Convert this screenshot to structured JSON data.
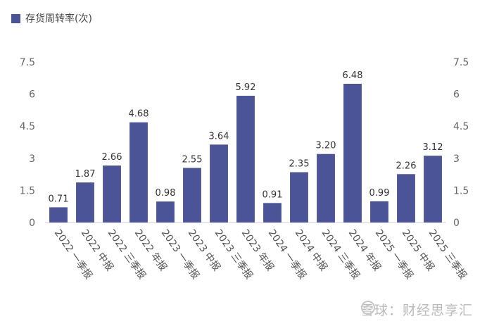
{
  "chart_data": {
    "type": "bar",
    "categories": [
      "2022一季报",
      "2022中报",
      "2022三季报",
      "2022年报",
      "2023一季报",
      "2023中报",
      "2023三季报",
      "2023年报",
      "2024一季报",
      "2024中报",
      "2024三季报",
      "2024年报",
      "2025一季报",
      "2025中报",
      "2025三季报"
    ],
    "x_tick_labels": [
      "2022 一季报",
      "2022 中报",
      "2022 三季报",
      "2022 年报",
      "2023 一季报",
      "2023 中报",
      "2023 三季报",
      "2023 年报",
      "2024 一季报",
      "2024 中报",
      "2024 三季报",
      "2024 年报",
      "2025 一季报",
      "2025 中报",
      "2025 三季报"
    ],
    "series": [
      {
        "name": "存货周转率(次)",
        "values": [
          0.71,
          1.87,
          2.66,
          4.68,
          0.98,
          2.55,
          3.64,
          5.92,
          0.91,
          2.35,
          3.2,
          6.48,
          0.99,
          2.26,
          3.12
        ],
        "data_labels": [
          "0.71",
          "1.87",
          "2.66",
          "4.68",
          "0.98",
          "2.55",
          "3.64",
          "5.92",
          "0.91",
          "2.35",
          "3.20",
          "6.48",
          "0.99",
          "2.26",
          "3.12"
        ]
      }
    ],
    "ylim": [
      0,
      7.5
    ],
    "y_ticks": [
      "0",
      "1.5",
      "3",
      "4.5",
      "6",
      "7.5"
    ],
    "y2_ticks": [
      "0",
      "1.5",
      "3",
      "4.5",
      "6",
      "7.5"
    ],
    "legend_position": "top-left",
    "grid": false,
    "bar_color": "#4b5497"
  },
  "watermark": {
    "text": "雪球：财经思享汇"
  }
}
